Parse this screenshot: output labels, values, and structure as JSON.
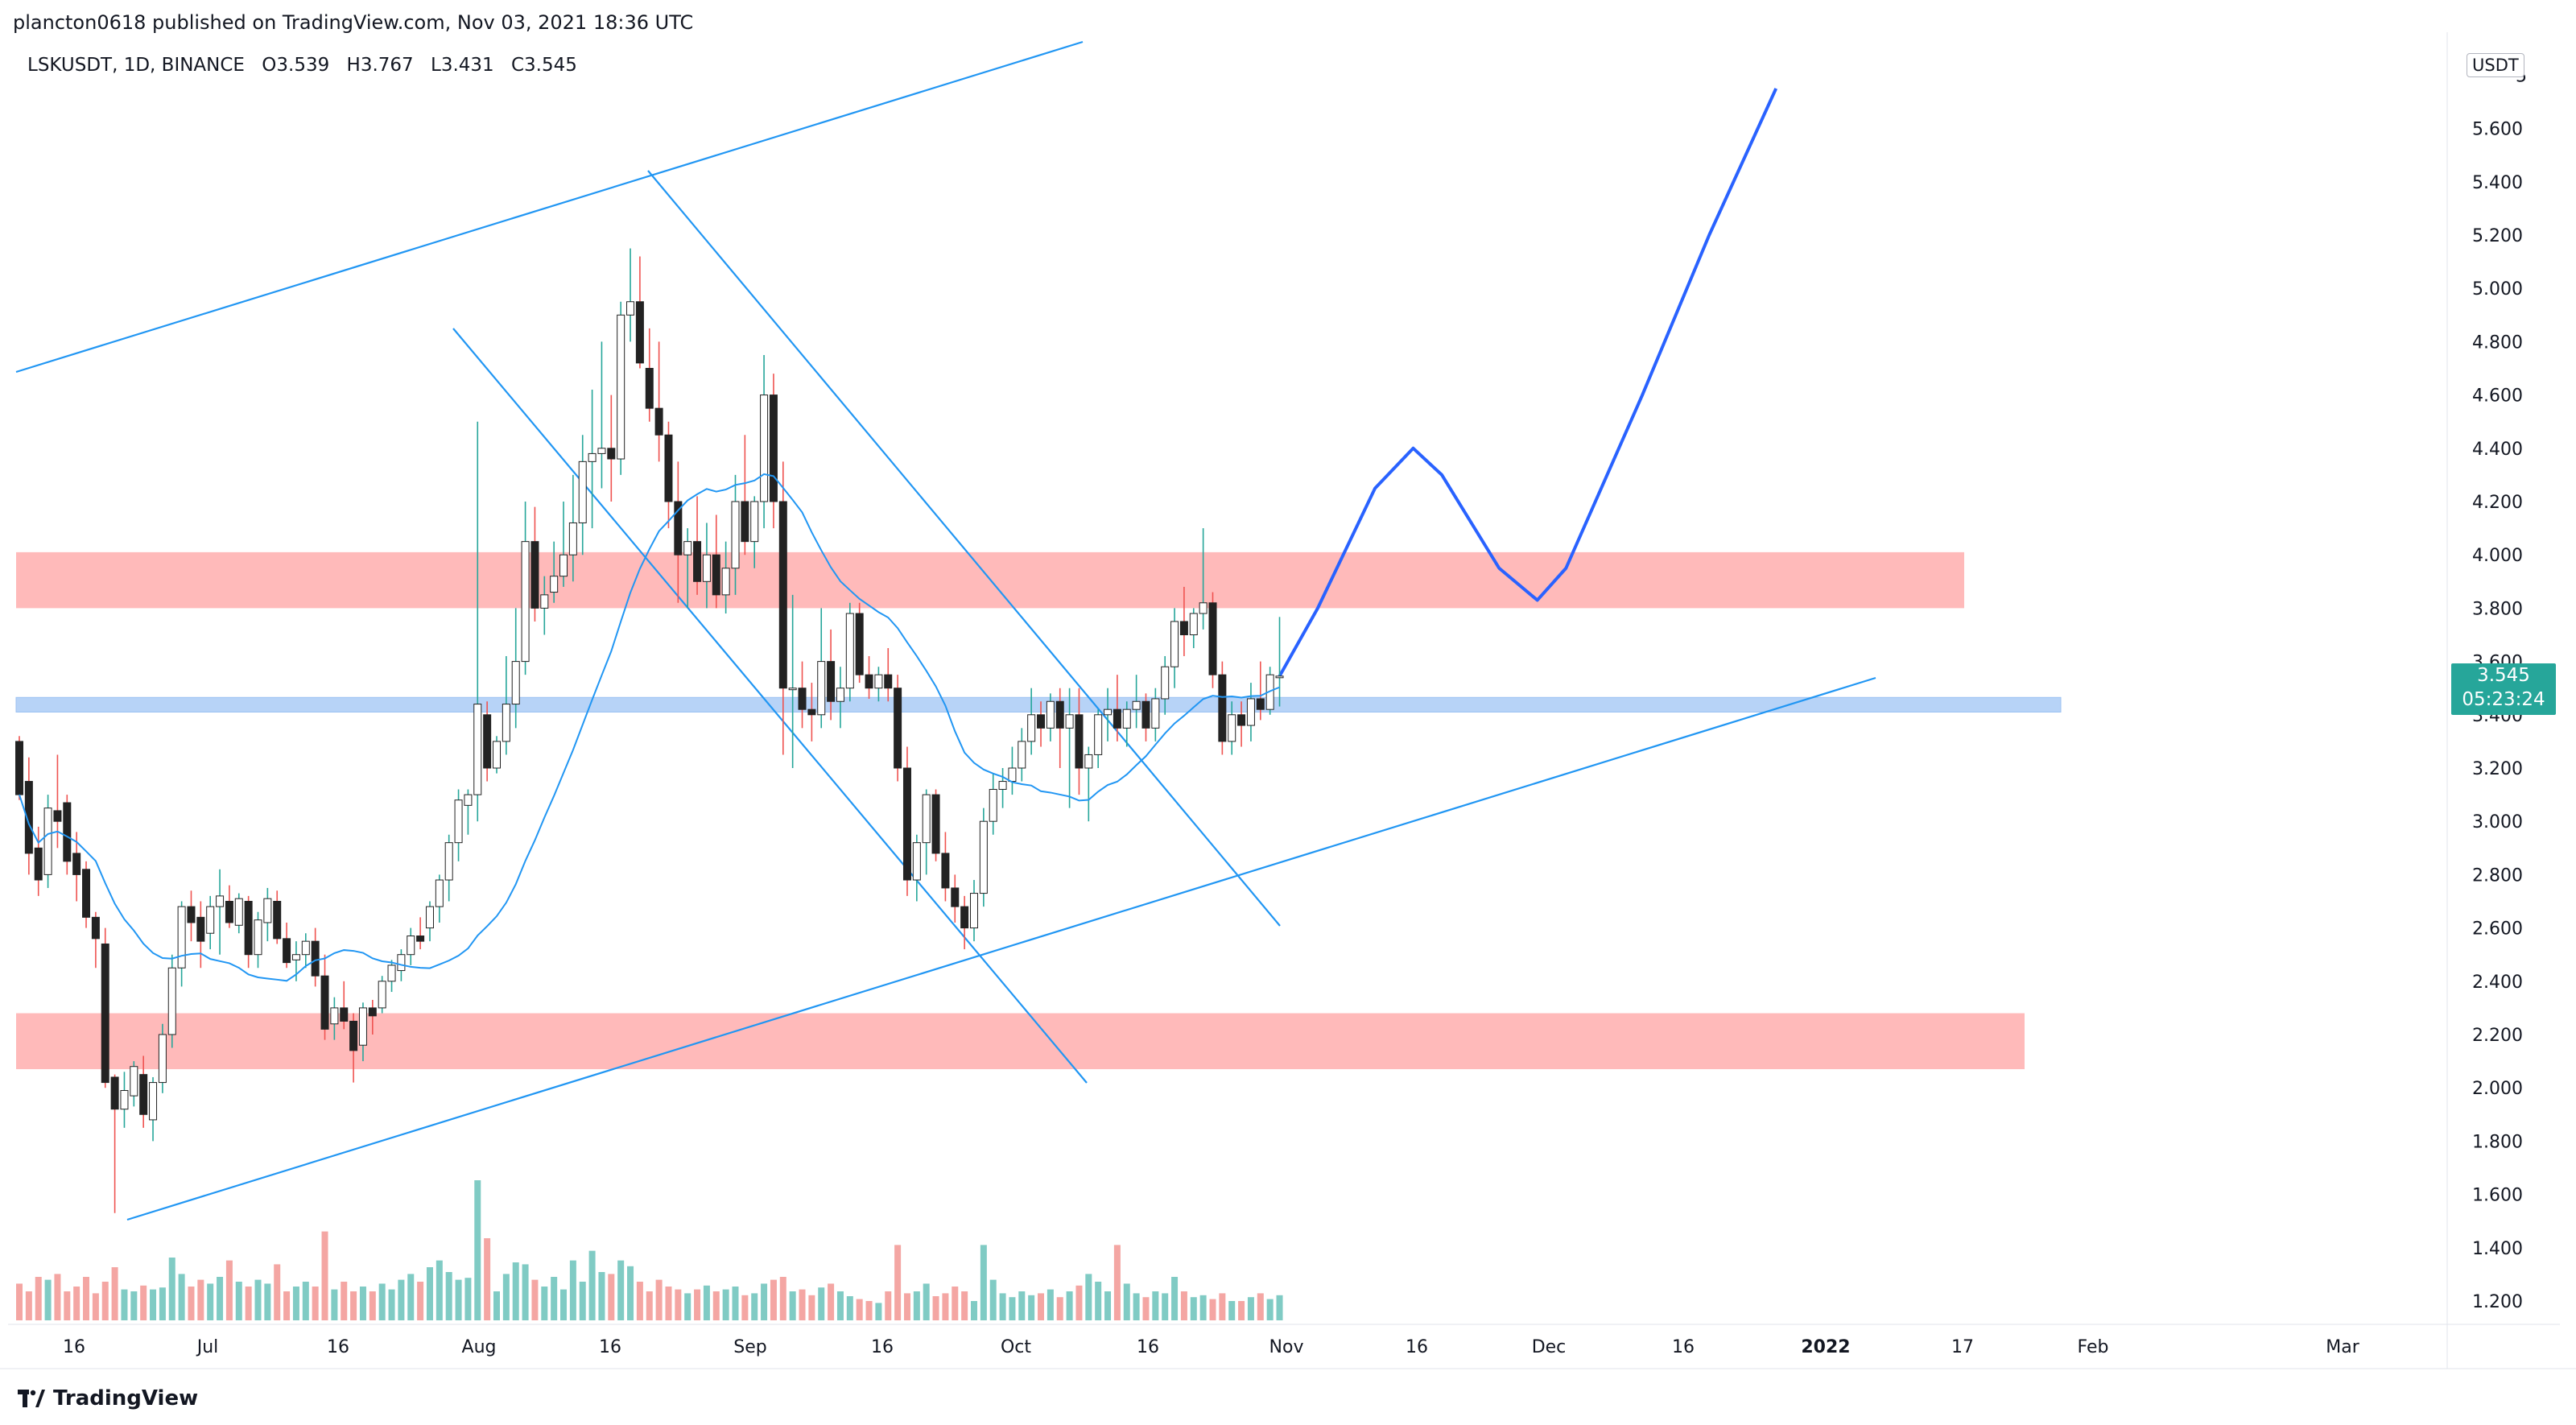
{
  "header": {
    "publisher_line": "plancton0618 published on TradingView.com, Nov 03, 2021 18:36 UTC"
  },
  "legend": {
    "symbol": "LSKUSDT, 1D, BINANCE",
    "open": "O3.539",
    "high": "H3.767",
    "low": "L3.431",
    "close": "C3.545"
  },
  "price_axis": {
    "unit_button": "USDT",
    "top_partial": "5",
    "last_price": "3.545",
    "countdown": "05:23:24"
  },
  "footer": {
    "brand": "TradingView"
  },
  "colors": {
    "up": "#26a69a",
    "down": "#ef5350",
    "up_volume": "#80cbc4",
    "down_volume": "#f4a6a3",
    "trendline": "#2196f3",
    "projection": "#2962ff",
    "resistance_zone": "#ffb3b3",
    "support_zone": "#b7d3f7"
  },
  "chart_data": {
    "type": "candlestick",
    "symbol": "LSKUSDT",
    "interval": "1D",
    "exchange": "BINANCE",
    "ylim": [
      1.1,
      5.8
    ],
    "y_ticks": [
      "5.600",
      "5.400",
      "5.200",
      "5.000",
      "4.800",
      "4.600",
      "4.400",
      "4.200",
      "4.000",
      "3.800",
      "3.600",
      "3.400",
      "3.200",
      "3.000",
      "2.800",
      "2.600",
      "2.400",
      "2.200",
      "2.000",
      "1.800",
      "1.600",
      "1.400",
      "1.200"
    ],
    "x_labels": [
      "16",
      "Jul",
      "16",
      "Aug",
      "16",
      "Sep",
      "16",
      "Oct",
      "16",
      "Nov",
      "16",
      "Dec",
      "16",
      "2022",
      "17",
      "Feb",
      "Mar"
    ],
    "first_date": "2021-06-10",
    "candles": [
      [
        3.3,
        3.32,
        3.08,
        3.1
      ],
      [
        3.15,
        3.24,
        2.8,
        2.88
      ],
      [
        2.9,
        2.98,
        2.72,
        2.78
      ],
      [
        2.8,
        3.1,
        2.75,
        3.05
      ],
      [
        3.04,
        3.25,
        2.9,
        3.0
      ],
      [
        3.07,
        3.1,
        2.8,
        2.85
      ],
      [
        2.88,
        2.96,
        2.7,
        2.8
      ],
      [
        2.82,
        2.85,
        2.6,
        2.64
      ],
      [
        2.64,
        2.66,
        2.45,
        2.56
      ],
      [
        2.54,
        2.6,
        2.0,
        2.02
      ],
      [
        2.04,
        2.05,
        1.53,
        1.92
      ],
      [
        1.92,
        2.06,
        1.85,
        1.99
      ],
      [
        1.97,
        2.1,
        1.93,
        2.08
      ],
      [
        2.05,
        2.12,
        1.85,
        1.9
      ],
      [
        1.88,
        2.04,
        1.8,
        2.02
      ],
      [
        2.02,
        2.24,
        1.98,
        2.2
      ],
      [
        2.2,
        2.5,
        2.15,
        2.45
      ],
      [
        2.45,
        2.7,
        2.38,
        2.68
      ],
      [
        2.68,
        2.74,
        2.55,
        2.62
      ],
      [
        2.64,
        2.7,
        2.45,
        2.55
      ],
      [
        2.58,
        2.72,
        2.52,
        2.68
      ],
      [
        2.68,
        2.82,
        2.5,
        2.72
      ],
      [
        2.7,
        2.76,
        2.6,
        2.62
      ],
      [
        2.61,
        2.73,
        2.58,
        2.71
      ],
      [
        2.7,
        2.72,
        2.45,
        2.5
      ],
      [
        2.5,
        2.66,
        2.45,
        2.63
      ],
      [
        2.62,
        2.75,
        2.55,
        2.71
      ],
      [
        2.7,
        2.74,
        2.54,
        2.56
      ],
      [
        2.56,
        2.62,
        2.45,
        2.47
      ],
      [
        2.48,
        2.55,
        2.4,
        2.5
      ],
      [
        2.5,
        2.58,
        2.45,
        2.55
      ],
      [
        2.55,
        2.6,
        2.38,
        2.42
      ],
      [
        2.42,
        2.5,
        2.18,
        2.22
      ],
      [
        2.24,
        2.34,
        2.18,
        2.3
      ],
      [
        2.3,
        2.4,
        2.22,
        2.25
      ],
      [
        2.25,
        2.28,
        2.02,
        2.14
      ],
      [
        2.16,
        2.32,
        2.1,
        2.3
      ],
      [
        2.3,
        2.33,
        2.2,
        2.27
      ],
      [
        2.3,
        2.42,
        2.28,
        2.4
      ],
      [
        2.4,
        2.48,
        2.36,
        2.46
      ],
      [
        2.44,
        2.52,
        2.4,
        2.5
      ],
      [
        2.5,
        2.6,
        2.46,
        2.57
      ],
      [
        2.57,
        2.64,
        2.52,
        2.55
      ],
      [
        2.6,
        2.7,
        2.55,
        2.68
      ],
      [
        2.68,
        2.8,
        2.62,
        2.78
      ],
      [
        2.78,
        2.95,
        2.7,
        2.92
      ],
      [
        2.92,
        3.12,
        2.85,
        3.08
      ],
      [
        3.06,
        3.12,
        2.95,
        3.1
      ],
      [
        3.1,
        4.5,
        3.0,
        3.44
      ],
      [
        3.4,
        3.45,
        3.15,
        3.2
      ],
      [
        3.2,
        3.32,
        3.18,
        3.3
      ],
      [
        3.3,
        3.62,
        3.25,
        3.44
      ],
      [
        3.44,
        3.8,
        3.35,
        3.6
      ],
      [
        3.6,
        4.2,
        3.55,
        4.05
      ],
      [
        4.05,
        4.18,
        3.75,
        3.8
      ],
      [
        3.8,
        3.92,
        3.7,
        3.85
      ],
      [
        3.86,
        4.05,
        3.82,
        3.92
      ],
      [
        3.92,
        4.2,
        3.88,
        4.0
      ],
      [
        4.0,
        4.3,
        3.9,
        4.12
      ],
      [
        4.12,
        4.45,
        4.0,
        4.35
      ],
      [
        4.35,
        4.62,
        4.1,
        4.38
      ],
      [
        4.38,
        4.8,
        4.25,
        4.4
      ],
      [
        4.4,
        4.6,
        4.2,
        4.36
      ],
      [
        4.36,
        4.95,
        4.3,
        4.9
      ],
      [
        4.9,
        5.15,
        4.8,
        4.95
      ],
      [
        4.95,
        5.12,
        4.7,
        4.72
      ],
      [
        4.7,
        4.85,
        4.5,
        4.55
      ],
      [
        4.55,
        4.8,
        4.35,
        4.45
      ],
      [
        4.45,
        4.5,
        4.1,
        4.2
      ],
      [
        4.2,
        4.35,
        3.82,
        4.0
      ],
      [
        4.0,
        4.1,
        3.8,
        4.05
      ],
      [
        4.05,
        4.22,
        3.85,
        3.9
      ],
      [
        3.9,
        4.12,
        3.8,
        4.0
      ],
      [
        4.0,
        4.15,
        3.8,
        3.85
      ],
      [
        3.85,
        4.05,
        3.78,
        3.95
      ],
      [
        3.95,
        4.3,
        3.85,
        4.2
      ],
      [
        4.2,
        4.45,
        4.0,
        4.05
      ],
      [
        4.05,
        4.22,
        3.95,
        4.2
      ],
      [
        4.2,
        4.75,
        4.1,
        4.6
      ],
      [
        4.6,
        4.68,
        4.1,
        4.2
      ],
      [
        4.2,
        4.35,
        3.25,
        3.5
      ],
      [
        3.5,
        3.85,
        3.2,
        3.5
      ],
      [
        3.5,
        3.6,
        3.35,
        3.42
      ],
      [
        3.42,
        3.52,
        3.3,
        3.4
      ],
      [
        3.4,
        3.8,
        3.35,
        3.6
      ],
      [
        3.6,
        3.72,
        3.38,
        3.45
      ],
      [
        3.45,
        3.58,
        3.35,
        3.5
      ],
      [
        3.5,
        3.82,
        3.45,
        3.78
      ],
      [
        3.78,
        3.82,
        3.52,
        3.55
      ],
      [
        3.55,
        3.62,
        3.46,
        3.5
      ],
      [
        3.5,
        3.58,
        3.45,
        3.55
      ],
      [
        3.55,
        3.65,
        3.45,
        3.5
      ],
      [
        3.5,
        3.55,
        3.15,
        3.2
      ],
      [
        3.2,
        3.28,
        2.72,
        2.78
      ],
      [
        2.78,
        2.95,
        2.7,
        2.92
      ],
      [
        2.92,
        3.12,
        2.8,
        3.1
      ],
      [
        3.1,
        3.12,
        2.85,
        2.88
      ],
      [
        2.88,
        2.96,
        2.7,
        2.75
      ],
      [
        2.75,
        2.8,
        2.62,
        2.68
      ],
      [
        2.68,
        2.72,
        2.52,
        2.6
      ],
      [
        2.6,
        2.78,
        2.55,
        2.73
      ],
      [
        2.73,
        3.05,
        2.68,
        3.0
      ],
      [
        3.0,
        3.18,
        2.95,
        3.12
      ],
      [
        3.12,
        3.2,
        3.05,
        3.15
      ],
      [
        3.15,
        3.28,
        3.1,
        3.2
      ],
      [
        3.2,
        3.35,
        3.15,
        3.3
      ],
      [
        3.3,
        3.5,
        3.25,
        3.4
      ],
      [
        3.4,
        3.45,
        3.28,
        3.35
      ],
      [
        3.35,
        3.48,
        3.3,
        3.45
      ],
      [
        3.45,
        3.5,
        3.2,
        3.35
      ],
      [
        3.35,
        3.5,
        3.05,
        3.4
      ],
      [
        3.4,
        3.5,
        3.1,
        3.2
      ],
      [
        3.2,
        3.28,
        3.0,
        3.25
      ],
      [
        3.25,
        3.42,
        3.2,
        3.4
      ],
      [
        3.4,
        3.5,
        3.3,
        3.42
      ],
      [
        3.42,
        3.55,
        3.3,
        3.35
      ],
      [
        3.35,
        3.45,
        3.28,
        3.42
      ],
      [
        3.42,
        3.55,
        3.35,
        3.45
      ],
      [
        3.45,
        3.48,
        3.3,
        3.35
      ],
      [
        3.35,
        3.5,
        3.3,
        3.46
      ],
      [
        3.46,
        3.62,
        3.4,
        3.58
      ],
      [
        3.58,
        3.8,
        3.5,
        3.75
      ],
      [
        3.75,
        3.88,
        3.62,
        3.7
      ],
      [
        3.7,
        3.8,
        3.65,
        3.78
      ],
      [
        3.78,
        4.1,
        3.72,
        3.82
      ],
      [
        3.82,
        3.86,
        3.5,
        3.55
      ],
      [
        3.55,
        3.6,
        3.25,
        3.3
      ],
      [
        3.3,
        3.45,
        3.25,
        3.4
      ],
      [
        3.4,
        3.45,
        3.28,
        3.36
      ],
      [
        3.36,
        3.52,
        3.3,
        3.46
      ],
      [
        3.46,
        3.6,
        3.38,
        3.42
      ],
      [
        3.42,
        3.58,
        3.4,
        3.55
      ],
      [
        3.539,
        3.767,
        3.431,
        3.545
      ]
    ],
    "volume_relative": [
      0.38,
      0.3,
      0.45,
      0.42,
      0.48,
      0.3,
      0.35,
      0.45,
      0.28,
      0.4,
      0.55,
      0.32,
      0.3,
      0.36,
      0.32,
      0.34,
      0.65,
      0.48,
      0.35,
      0.42,
      0.38,
      0.45,
      0.62,
      0.4,
      0.35,
      0.42,
      0.38,
      0.58,
      0.3,
      0.35,
      0.4,
      0.35,
      0.92,
      0.32,
      0.4,
      0.3,
      0.35,
      0.3,
      0.38,
      0.32,
      0.42,
      0.48,
      0.4,
      0.55,
      0.62,
      0.5,
      0.42,
      0.44,
      1.45,
      0.85,
      0.3,
      0.48,
      0.6,
      0.58,
      0.42,
      0.35,
      0.45,
      0.32,
      0.62,
      0.4,
      0.72,
      0.5,
      0.48,
      0.62,
      0.56,
      0.4,
      0.3,
      0.42,
      0.35,
      0.32,
      0.28,
      0.32,
      0.36,
      0.3,
      0.32,
      0.35,
      0.26,
      0.28,
      0.38,
      0.42,
      0.45,
      0.3,
      0.32,
      0.26,
      0.34,
      0.38,
      0.3,
      0.25,
      0.22,
      0.2,
      0.18,
      0.3,
      0.78,
      0.28,
      0.3,
      0.38,
      0.25,
      0.28,
      0.35,
      0.3,
      0.2,
      0.78,
      0.42,
      0.28,
      0.24,
      0.3,
      0.26,
      0.28,
      0.32,
      0.24,
      0.3,
      0.36,
      0.48,
      0.4,
      0.3,
      0.78,
      0.38,
      0.28,
      0.24,
      0.3,
      0.28,
      0.45,
      0.3,
      0.24,
      0.26,
      0.22,
      0.28,
      0.2,
      0.2,
      0.24,
      0.28,
      0.22,
      0.26,
      0.28,
      0.22,
      0.24,
      0.3
    ],
    "sma_period": 20,
    "levels": {
      "resistance_zone": [
        3.8,
        4.01
      ],
      "support_zone": [
        3.41,
        3.465
      ],
      "lower_zone": [
        2.07,
        2.28
      ]
    },
    "projection_path": [
      [
        3.545,
        0
      ],
      [
        3.8,
        4
      ],
      [
        4.25,
        10
      ],
      [
        4.4,
        14
      ],
      [
        4.3,
        17
      ],
      [
        3.95,
        23
      ],
      [
        3.83,
        27
      ],
      [
        3.95,
        30
      ],
      [
        4.6,
        38
      ],
      [
        5.2,
        45
      ],
      [
        5.75,
        52
      ]
    ]
  }
}
